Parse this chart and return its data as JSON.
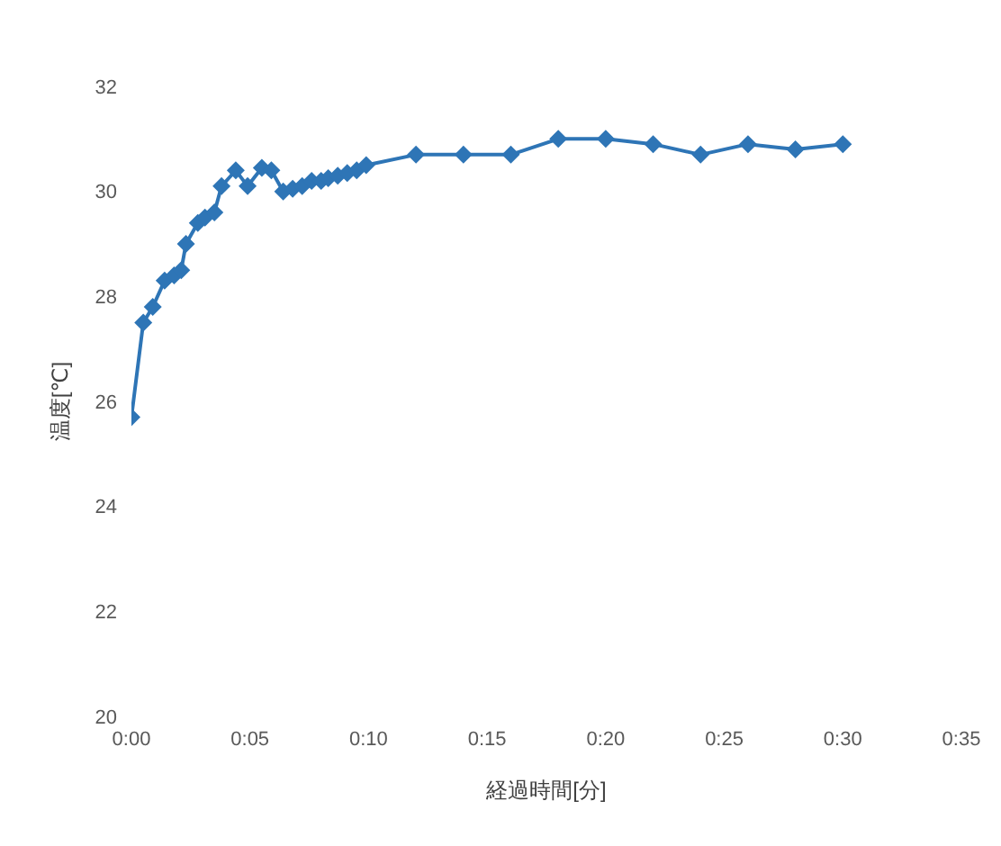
{
  "chart_data": {
    "type": "line",
    "xlabel": "経過時間[分]",
    "ylabel": "温度[℃]",
    "x": [
      0,
      0.5,
      0.9,
      1.4,
      1.8,
      2.1,
      2.3,
      2.8,
      3.1,
      3.5,
      3.8,
      4.4,
      4.9,
      5.5,
      5.9,
      6.4,
      6.8,
      7.2,
      7.6,
      8.0,
      8.3,
      8.7,
      9.1,
      9.5,
      9.9,
      12,
      14,
      16,
      18,
      20,
      22,
      24,
      26,
      28,
      30
    ],
    "series": [
      {
        "color": "#2e75b6",
        "values": [
          25.7,
          27.5,
          27.8,
          28.3,
          28.4,
          28.5,
          29.0,
          29.4,
          29.5,
          29.6,
          30.1,
          30.4,
          30.1,
          30.45,
          30.4,
          30.0,
          30.05,
          30.1,
          30.2,
          30.2,
          30.25,
          30.3,
          30.35,
          30.4,
          30.5,
          30.7,
          30.7,
          30.7,
          31.0,
          31.0,
          30.9,
          30.7,
          30.9,
          30.8,
          30.9
        ]
      }
    ],
    "xlim": [
      0,
      35
    ],
    "xticks": [
      {
        "value": 0,
        "label": "0:00"
      },
      {
        "value": 5,
        "label": "0:05"
      },
      {
        "value": 10,
        "label": "0:10"
      },
      {
        "value": 15,
        "label": "0:15"
      },
      {
        "value": 20,
        "label": "0:20"
      },
      {
        "value": 25,
        "label": "0:25"
      },
      {
        "value": 30,
        "label": "0:30"
      },
      {
        "value": 35,
        "label": "0:35"
      }
    ],
    "ylim": [
      20,
      32
    ],
    "yticks": [
      20,
      22,
      24,
      26,
      28,
      30,
      32
    ],
    "grid": false,
    "legend": false,
    "marker": "diamond",
    "line_style": "solid"
  }
}
